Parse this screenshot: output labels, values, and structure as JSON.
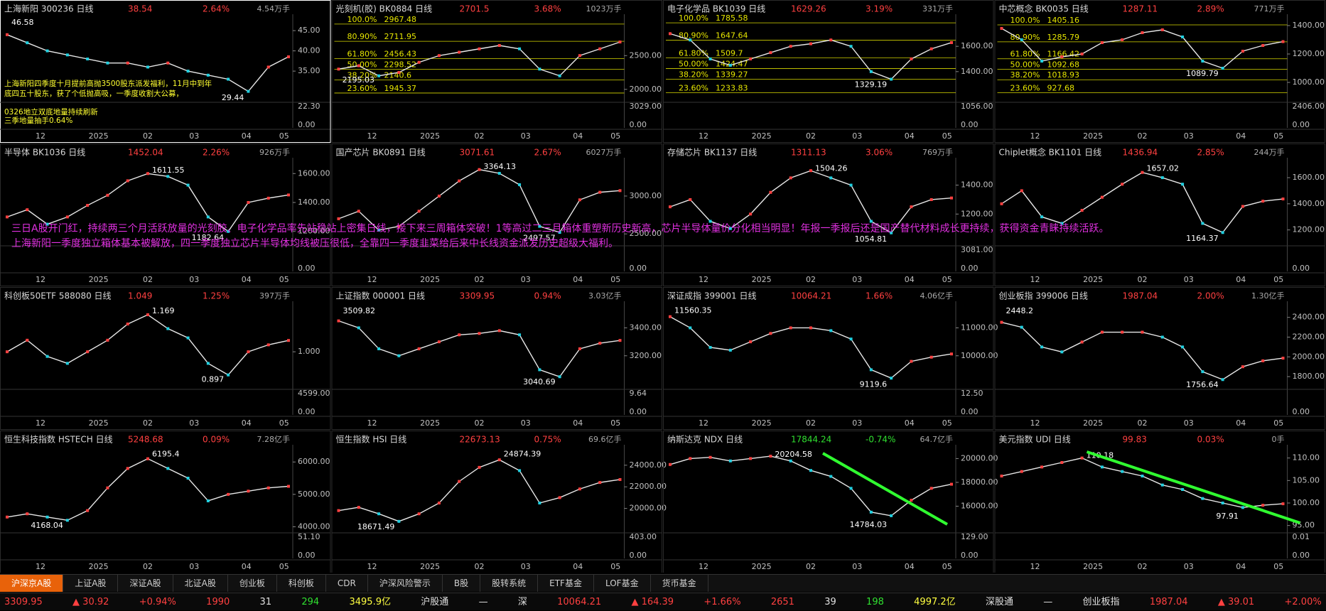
{
  "chart_data": [
    {
      "type": "line",
      "title": "上海新阳 300236 日线",
      "price": 38.54,
      "change": "2.64%",
      "volume": "4.54万手",
      "color": "#e8e8e8",
      "ylim": [
        28,
        48
      ],
      "yticks": [
        {
          "value": 45,
          "label": "45.00"
        },
        {
          "value": 40,
          "label": "40.00"
        },
        {
          "value": 35,
          "label": "35.00"
        }
      ],
      "vol_labels": [
        "22.30",
        "0.00"
      ],
      "xlabels": [
        "12",
        "2025",
        "02",
        "03",
        "04",
        "05"
      ],
      "high": 46.58,
      "low": 29.44,
      "values": [
        44,
        42,
        40,
        39,
        38,
        37,
        37,
        36,
        37,
        35,
        34,
        33,
        30,
        36,
        38.54
      ],
      "notes": [
        "上海新阳四季度十月提前高抛3500股东派发福利，11月中到年",
        "底四五十股东，获了个低抛高吸，一季度收割大公募，",
        "0326地立双底地量持续刷新",
        "三季地量抽手0.64%"
      ]
    },
    {
      "type": "line",
      "title": "光刻机(胶) BK0884 日线",
      "price": 2701.5,
      "change": "3.68%",
      "volume": "1023万手",
      "color": "#e8e8e8",
      "ylim": [
        1850,
        3050
      ],
      "yticks": [
        {
          "value": 2500,
          "label": "2500.00"
        },
        {
          "value": 2000,
          "label": "2000.00"
        }
      ],
      "vol_labels": [
        "3029.00",
        "0.00"
      ],
      "xlabels": [
        "12",
        "2025",
        "02",
        "03",
        "04",
        "05"
      ],
      "low": 2195.03,
      "fib": [
        {
          "pct": "100.0%",
          "value": 2967.48
        },
        {
          "pct": "80.90%",
          "value": 2711.95
        },
        {
          "pct": "61.80%",
          "value": 2456.43
        },
        {
          "pct": "50.00%",
          "value": 2298.52
        },
        {
          "pct": "38.20%",
          "value": 2140.6
        },
        {
          "pct": "23.60%",
          "value": 1945.37
        }
      ],
      "values": [
        2300,
        2350,
        2200,
        2250,
        2400,
        2500,
        2550,
        2600,
        2650,
        2600,
        2300,
        2200,
        2500,
        2600,
        2701.5
      ]
    },
    {
      "type": "line",
      "title": "电子化学品 BK1039 日线",
      "price": 1629.26,
      "change": "3.19%",
      "volume": "331万手",
      "color": "#e8e8e8",
      "ylim": [
        1180,
        1820
      ],
      "yticks": [
        {
          "value": 1600,
          "label": "1600.00"
        },
        {
          "value": 1400,
          "label": "1400.00"
        }
      ],
      "vol_labels": [
        "1056.00",
        "0.00"
      ],
      "xlabels": [
        "12",
        "2025",
        "02",
        "03",
        "04",
        "05"
      ],
      "low": 1329.19,
      "fib": [
        {
          "pct": "100.0%",
          "value": 1785.58
        },
        {
          "pct": "80.90%",
          "value": 1647.64
        },
        {
          "pct": "61.80%",
          "value": 1509.7
        },
        {
          "pct": "50.00%",
          "value": 1424.47
        },
        {
          "pct": "38.20%",
          "value": 1339.27
        },
        {
          "pct": "23.60%",
          "value": 1233.83
        }
      ],
      "values": [
        1700,
        1650,
        1500,
        1450,
        1500,
        1550,
        1600,
        1620,
        1650,
        1600,
        1400,
        1340,
        1500,
        1580,
        1629.26
      ]
    },
    {
      "type": "line",
      "title": "中芯概念 BK0035 日线",
      "price": 1287.11,
      "change": "2.89%",
      "volume": "771万手",
      "color": "#e8e8e8",
      "ylim": [
        880,
        1450
      ],
      "yticks": [
        {
          "value": 1400,
          "label": "1400.00"
        },
        {
          "value": 1200,
          "label": "1200.00"
        },
        {
          "value": 1000,
          "label": "1000.00"
        }
      ],
      "vol_labels": [
        "2406.00",
        "0.00"
      ],
      "xlabels": [
        "12",
        "2025",
        "02",
        "03",
        "04",
        "05"
      ],
      "low": 1089.79,
      "fib": [
        {
          "pct": "100.0%",
          "value": 1405.16
        },
        {
          "pct": "80.90%",
          "value": 1285.79
        },
        {
          "pct": "61.80%",
          "value": 1166.42
        },
        {
          "pct": "50.00%",
          "value": 1092.68
        },
        {
          "pct": "38.20%",
          "value": 1018.93
        },
        {
          "pct": "23.60%",
          "value": 927.68
        }
      ],
      "values": [
        1380,
        1300,
        1150,
        1180,
        1200,
        1280,
        1300,
        1350,
        1370,
        1320,
        1150,
        1100,
        1220,
        1260,
        1287.11
      ]
    },
    {
      "type": "line",
      "title": "半导体 BK1036 日线",
      "price": 1452.04,
      "change": "2.26%",
      "volume": "926万手",
      "color": "#e8e8e8",
      "ylim": [
        1120,
        1680
      ],
      "yticks": [
        {
          "value": 1600,
          "label": "1600.00"
        },
        {
          "value": 1400,
          "label": "1400.00"
        },
        {
          "value": 1200,
          "label": "1200.00"
        }
      ],
      "vol_labels": [
        "0.00"
      ],
      "xlabels": [
        "12",
        "2025",
        "02",
        "03",
        "04",
        "05"
      ],
      "high": 1611.55,
      "low": 1182.64,
      "values": [
        1300,
        1350,
        1250,
        1300,
        1380,
        1450,
        1550,
        1600,
        1580,
        1520,
        1300,
        1200,
        1400,
        1430,
        1452.04
      ]
    },
    {
      "type": "line",
      "title": "国产芯片 BK0891 日线",
      "price": 3071.61,
      "change": "2.67%",
      "volume": "6027万手",
      "color": "#e8e8e8",
      "ylim": [
        2380,
        3450
      ],
      "yticks": [
        {
          "value": 3000,
          "label": "3000.00"
        },
        {
          "value": 2500,
          "label": "2500.00"
        }
      ],
      "vol_labels": [
        "0.00"
      ],
      "xlabels": [
        "12",
        "2025",
        "02",
        "03",
        "04",
        "05"
      ],
      "high": 3364.13,
      "low": 2497.57,
      "values": [
        2700,
        2800,
        2550,
        2600,
        2800,
        3000,
        3200,
        3350,
        3300,
        3150,
        2600,
        2520,
        2950,
        3050,
        3071.61
      ]
    },
    {
      "type": "line",
      "title": "存储芯片 BK1137 日线",
      "price": 1311.13,
      "change": "3.06%",
      "volume": "769万手",
      "color": "#e8e8e8",
      "ylim": [
        1000,
        1560
      ],
      "yticks": [
        {
          "value": 1400,
          "label": "1400.00"
        },
        {
          "value": 1200,
          "label": "1200.00"
        }
      ],
      "vol_labels": [
        "3081.00",
        "0.00"
      ],
      "xlabels": [
        "12",
        "2025",
        "02",
        "03",
        "04",
        "05"
      ],
      "high": 1504.26,
      "low": 1054.81,
      "values": [
        1250,
        1300,
        1150,
        1100,
        1200,
        1350,
        1450,
        1500,
        1450,
        1400,
        1150,
        1070,
        1250,
        1300,
        1311.13
      ]
    },
    {
      "type": "line",
      "title": "Chiplet概念 BK1101 日线",
      "price": 1436.94,
      "change": "2.85%",
      "volume": "244万手",
      "color": "#e8e8e8",
      "ylim": [
        1100,
        1720
      ],
      "yticks": [
        {
          "value": 1600,
          "label": "1600.00"
        },
        {
          "value": 1400,
          "label": "1400.00"
        },
        {
          "value": 1200,
          "label": "1200.00"
        }
      ],
      "vol_labels": [
        "0.00"
      ],
      "xlabels": [
        "12",
        "2025",
        "02",
        "03",
        "04",
        "05"
      ],
      "high": 1657.02,
      "low": 1164.37,
      "values": [
        1400,
        1500,
        1300,
        1250,
        1350,
        1450,
        1550,
        1640,
        1600,
        1550,
        1250,
        1180,
        1380,
        1420,
        1436.94
      ]
    },
    {
      "type": "line",
      "title": "科创板50ETF 588080 日线",
      "price": 1.049,
      "change": "1.25%",
      "volume": "397万手",
      "color": "#e8e8e8",
      "ylim": [
        0.85,
        1.2
      ],
      "yticks": [
        {
          "value": 1,
          "label": "1.000"
        }
      ],
      "vol_labels": [
        "4599.00",
        "0.00"
      ],
      "xlabels": [
        "12",
        "2025",
        "02",
        "03",
        "04",
        "05"
      ],
      "high": 1.169,
      "low": 0.897,
      "values": [
        1.0,
        1.05,
        0.98,
        0.95,
        1.0,
        1.05,
        1.12,
        1.16,
        1.1,
        1.06,
        0.95,
        0.9,
        1.0,
        1.03,
        1.049
      ]
    },
    {
      "type": "line",
      "title": "上证指数 000001 日线",
      "price": 3309.95,
      "change": "0.94%",
      "volume": "3.03亿手",
      "color": "#e8e8e8",
      "ylim": [
        2980,
        3560
      ],
      "yticks": [
        {
          "value": 3400,
          "label": "3400.00"
        },
        {
          "value": 3200,
          "label": "3200.00"
        }
      ],
      "vol_labels": [
        "9.64",
        "0.00"
      ],
      "xlabels": [
        "12",
        "2025",
        "02",
        "03",
        "04",
        "05"
      ],
      "high": 3509.82,
      "low": 3040.69,
      "values": [
        3450,
        3400,
        3250,
        3200,
        3250,
        3300,
        3350,
        3360,
        3380,
        3350,
        3100,
        3050,
        3250,
        3290,
        3309.95
      ]
    },
    {
      "type": "line",
      "title": "深证成指 399001 日线",
      "price": 10064.21,
      "change": "1.66%",
      "volume": "4.06亿手",
      "color": "#e8e8e8",
      "ylim": [
        8900,
        11800
      ],
      "yticks": [
        {
          "value": 11000,
          "label": "11000.00"
        },
        {
          "value": 10000,
          "label": "10000.00"
        }
      ],
      "vol_labels": [
        "12.50",
        "0.00"
      ],
      "xlabels": [
        "12",
        "2025",
        "02",
        "03",
        "04",
        "05"
      ],
      "high": 11560.35,
      "low": 9119.6,
      "values": [
        11400,
        11000,
        10300,
        10200,
        10500,
        10800,
        11000,
        11000,
        10900,
        10600,
        9500,
        9200,
        9800,
        9950,
        10064.21
      ]
    },
    {
      "type": "line",
      "title": "创业板指 399006 日线",
      "price": 1987.04,
      "change": "2.00%",
      "volume": "1.30亿手",
      "color": "#e8e8e8",
      "ylim": [
        1700,
        2520
      ],
      "yticks": [
        {
          "value": 2400,
          "label": "2400.00"
        },
        {
          "value": 2200,
          "label": "2200.00"
        },
        {
          "value": 2000,
          "label": "2000.00"
        },
        {
          "value": 1800,
          "label": "1800.00"
        }
      ],
      "vol_labels": [
        "0.00"
      ],
      "xlabels": [
        "12",
        "2025",
        "02",
        "03",
        "04",
        "05"
      ],
      "high": 2448.2,
      "low": 1756.64,
      "values": [
        2350,
        2300,
        2100,
        2050,
        2150,
        2250,
        2250,
        2250,
        2200,
        2100,
        1850,
        1770,
        1900,
        1960,
        1987.04
      ]
    },
    {
      "type": "line",
      "title": "恒生科技指数 HSTECH 日线",
      "price": 5248.68,
      "change": "0.09%",
      "volume": "7.28亿手",
      "color": "#e8e8e8",
      "ylim": [
        3900,
        6400
      ],
      "yticks": [
        {
          "value": 6000,
          "label": "6000.00"
        },
        {
          "value": 5000,
          "label": "5000.00"
        },
        {
          "value": 4000,
          "label": "4000.00"
        }
      ],
      "vol_labels": [
        "51.10",
        "0.00"
      ],
      "xlabels": [
        "12",
        "2025",
        "02",
        "03",
        "04",
        "05"
      ],
      "high": 6195.4,
      "low": 4168.04,
      "values": [
        4300,
        4400,
        4300,
        4200,
        4500,
        5200,
        5800,
        6100,
        5800,
        5500,
        4800,
        5000,
        5100,
        5200,
        5248.68
      ]
    },
    {
      "type": "line",
      "title": "恒生指数 HSI 日线",
      "price": 22673.13,
      "change": "0.75%",
      "volume": "69.6亿手",
      "color": "#e8e8e8",
      "ylim": [
        18000,
        25500
      ],
      "yticks": [
        {
          "value": 24000,
          "label": "24000.00"
        },
        {
          "value": 22000,
          "label": "22000.00"
        },
        {
          "value": 20000,
          "label": "20000.00"
        }
      ],
      "vol_labels": [
        "403.00",
        "0.00"
      ],
      "xlabels": [
        "12",
        "2025",
        "02",
        "03",
        "04",
        "05"
      ],
      "high": 24874.39,
      "low": 18671.49,
      "values": [
        19800,
        20100,
        19500,
        18800,
        19500,
        20500,
        22500,
        23800,
        24500,
        23500,
        20500,
        21000,
        21800,
        22400,
        22673.13
      ]
    },
    {
      "type": "line",
      "title": "纳斯达克 NDX 日线",
      "price": 17844.24,
      "change": "-0.74%",
      "volume": "64.7亿手",
      "color": "#e8e8e8",
      "ylim": [
        14000,
        20800
      ],
      "yticks": [
        {
          "value": 20000,
          "label": "20000.00"
        },
        {
          "value": 18000,
          "label": "18000.00"
        },
        {
          "value": 16000,
          "label": "16000.00"
        }
      ],
      "vol_labels": [
        "129.00",
        "0.00"
      ],
      "xlabels": [
        "12",
        "2025",
        "02",
        "03",
        "04",
        "05"
      ],
      "high": 20204.58,
      "low": 14784.03,
      "values": [
        19500,
        20000,
        20100,
        19800,
        20000,
        20200,
        19800,
        19000,
        18500,
        17500,
        15500,
        15200,
        16500,
        17500,
        17844.24
      ]
    },
    {
      "type": "line",
      "title": "美元指数 UDI 日线",
      "price": 99.83,
      "change": "0.03%",
      "volume": "0手",
      "color": "#e8e8e8",
      "ylim": [
        94,
        112
      ],
      "yticks": [
        {
          "value": 110,
          "label": "110.00"
        },
        {
          "value": 105,
          "label": "105.00"
        },
        {
          "value": 100,
          "label": "100.00"
        },
        {
          "value": 95,
          "label": "95.00"
        }
      ],
      "vol_labels": [
        "0.01",
        "0.00"
      ],
      "xlabels": [
        "12",
        "2025",
        "02",
        "03",
        "04",
        "05"
      ],
      "high": 110.18,
      "low": 97.91,
      "values": [
        106,
        107,
        108,
        109,
        110,
        108,
        107,
        106,
        104,
        103,
        101,
        100,
        99,
        99.5,
        99.83
      ]
    }
  ],
  "banner": [
    "三日A股开门红，持续两三个月活跃放量的光刻胶、电子化学品率先站稳站上密集日线，接下来三周箱体突破！1等高过二三月箱体重塑新历史新高，芯片半导体量价分化相当明显！年报一季报后还是国产替代材料成长更持续，获得资金青睐持续活跃。",
    "上海新阳一季度独立箱体基本被解放，四一季度独立芯片半导体均线被压很低，全靠四一季度韭菜给后来中长线资金派发历史超级大福利。"
  ],
  "tabs": [
    "沪深京A股",
    "上证A股",
    "深证A股",
    "北证A股",
    "创业板",
    "科创板",
    "CDR",
    "沪深风险警示",
    "B股",
    "股转系统",
    "ETF基金",
    "LOF基金",
    "货币基金"
  ],
  "status": [
    {
      "text": "3309.95",
      "color": "#ff4040"
    },
    {
      "text": "▲ 30.92",
      "color": "#ff4040"
    },
    {
      "text": "+0.94%",
      "color": "#ff4040"
    },
    {
      "text": "1990",
      "color": "#ff4040"
    },
    {
      "text": "31",
      "color": "#e0e0e0"
    },
    {
      "text": "294",
      "color": "#30e030"
    },
    {
      "text": "3495.9亿",
      "color": "#ffff40"
    },
    {
      "text": "沪股通",
      "color": "#e0e0e0"
    },
    {
      "text": "—",
      "color": "#e0e0e0"
    },
    {
      "text": "深",
      "color": "#e0e0e0"
    },
    {
      "text": "10064.21",
      "color": "#ff4040"
    },
    {
      "text": "▲ 164.39",
      "color": "#ff4040"
    },
    {
      "text": "+1.66%",
      "color": "#ff4040"
    },
    {
      "text": "2651",
      "color": "#ff4040"
    },
    {
      "text": "39",
      "color": "#e0e0e0"
    },
    {
      "text": "198",
      "color": "#30e030"
    },
    {
      "text": "4997.2亿",
      "color": "#ffff40"
    },
    {
      "text": "深股通",
      "color": "#e0e0e0"
    },
    {
      "text": "—",
      "color": "#e0e0e0"
    },
    {
      "text": "创业板指",
      "color": "#e0e0e0"
    },
    {
      "text": "1987.04",
      "color": "#ff4040"
    },
    {
      "text": "▲ 39.01",
      "color": "#ff4040"
    },
    {
      "text": "+2.00%",
      "color": "#ff4040"
    }
  ]
}
